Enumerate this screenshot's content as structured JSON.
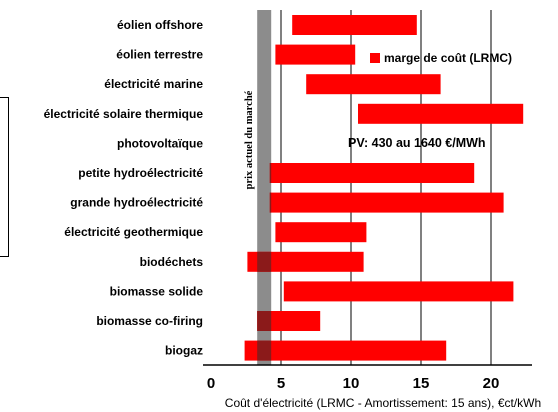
{
  "chart_data": {
    "type": "bar",
    "subtype": "horizontal-range",
    "categories": [
      "éolien offshore",
      "éolien terrestre",
      "électricité marine",
      "électricité solaire thermique",
      "photovoltaïque",
      "petite hydroélectricité",
      "grande hydroélectricité",
      "électricité geothermique",
      "biodéchets",
      "biomasse solide",
      "biomasse co-firing",
      "biogaz"
    ],
    "series": [
      {
        "name": "marge de coût (LRMC)",
        "color": "#ff0000",
        "ranges": [
          [
            5.8,
            14.7
          ],
          [
            4.6,
            10.3
          ],
          [
            6.8,
            16.4
          ],
          [
            10.5,
            22.3
          ],
          null,
          [
            4.2,
            18.8
          ],
          [
            4.2,
            20.9
          ],
          [
            4.6,
            11.1
          ],
          [
            2.6,
            10.9
          ],
          [
            5.2,
            21.6
          ],
          [
            3.3,
            7.8
          ],
          [
            2.4,
            16.8
          ]
        ]
      }
    ],
    "market_price_band": {
      "label": "prix actuel du marché",
      "range": [
        3.3,
        4.3
      ],
      "color": "#8c8c8c"
    },
    "annotation": "PV: 430 au 1640 €/MWh",
    "xlabel": "Coût d'électricité (LRMC - Amortissement: 15 ans), €ct/kWh",
    "x_ticks": [
      0,
      5,
      10,
      15,
      20
    ],
    "xlim": [
      0,
      22.5
    ],
    "grid": "vertical",
    "legend_position": "top-right"
  }
}
